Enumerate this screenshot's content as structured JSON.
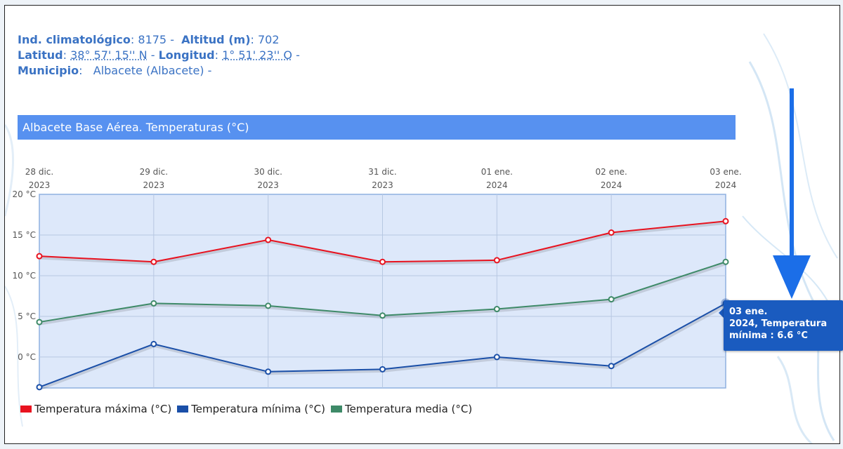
{
  "station": {
    "climate_index_label": "Ind. climatológico",
    "climate_index_value": "8175",
    "altitude_label": "Altitud (m)",
    "altitude_value": "702",
    "latitude_label": "Latitud",
    "latitude_value": "38° 57' 15'' N",
    "longitude_label": "Longitud",
    "longitude_value": "1° 51' 23'' O",
    "municipality_label": "Municipio",
    "municipality_value": "Albacete (Albacete)"
  },
  "tooltip": {
    "line1": "03 ene.",
    "line2": "2024, Temperatura",
    "line3": "mínima : 6.6 °C"
  },
  "chart_data": {
    "type": "line",
    "title": "Albacete Base Aérea. Temperaturas (°C)",
    "categories": [
      [
        "28 dic.",
        "2023"
      ],
      [
        "29 dic.",
        "2023"
      ],
      [
        "30 dic.",
        "2023"
      ],
      [
        "31 dic.",
        "2023"
      ],
      [
        "01 ene.",
        "2024"
      ],
      [
        "02 ene.",
        "2024"
      ],
      [
        "03 ene.",
        "2024"
      ]
    ],
    "y_ticks": [
      "20 °C",
      "15 °C",
      "10 °C",
      "5 °C",
      "0 °C"
    ],
    "y_tick_values": [
      20,
      15,
      10,
      5,
      0
    ],
    "ylim": [
      -3.8,
      20
    ],
    "x_axis_position": "top",
    "grid": true,
    "legend_position": "bottom-left",
    "highlight": {
      "series": 1,
      "index": 6
    },
    "series": [
      {
        "name": "Temperatura máxima (°C)",
        "color": "#e8121f",
        "values": [
          12.4,
          11.7,
          14.4,
          11.7,
          11.9,
          15.3,
          16.7
        ]
      },
      {
        "name": "Temperatura mínima (°C)",
        "color": "#1a4fa8",
        "values": [
          -3.7,
          1.6,
          -1.8,
          -1.5,
          0.0,
          -1.1,
          6.6
        ]
      },
      {
        "name": "Temperatura media (°C)",
        "color": "#3e8a68",
        "values": [
          4.3,
          6.6,
          6.3,
          5.1,
          5.9,
          7.1,
          11.7
        ]
      }
    ]
  }
}
